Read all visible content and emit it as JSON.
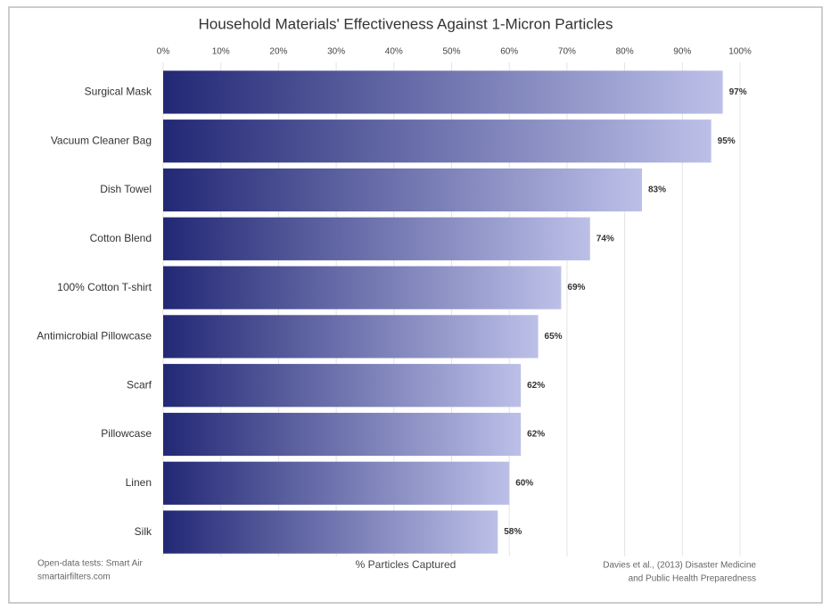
{
  "chart_data": {
    "type": "barh",
    "title": "Household Materials' Effectiveness Against 1-Micron Particles",
    "x_label": "% Particles Captured",
    "source_left": [
      "Open-data tests: Smart Air",
      "smartairfilters.com"
    ],
    "source_right": [
      "Davies et al., (2013) Disaster Medicine",
      "and Public Health Preparedness"
    ],
    "categories": [
      "Surgical Mask",
      "Vacuum Cleaner Bag",
      "Dish Towel",
      "Cotton Blend",
      "100% Cotton T-shirt",
      "Antimicrobial Pillowcase",
      "Scarf",
      "Pillowcase",
      "Linen",
      "Silk"
    ],
    "values": [
      97,
      95,
      83,
      74,
      69,
      65,
      62,
      62,
      60,
      58
    ],
    "value_labels": [
      "97%",
      "95%",
      "83%",
      "74%",
      "69%",
      "65%",
      "62%",
      "62%",
      "60%",
      "58%"
    ],
    "xlim": [
      0,
      100
    ],
    "xticks": [
      {
        "value": 0,
        "label": "0%"
      },
      {
        "value": 10,
        "label": "10%"
      },
      {
        "value": 20,
        "label": "20%"
      },
      {
        "value": 30,
        "label": "30%"
      },
      {
        "value": 40,
        "label": "40%"
      },
      {
        "value": 50,
        "label": "50%"
      },
      {
        "value": 60,
        "label": "60%"
      },
      {
        "value": 70,
        "label": "70%"
      },
      {
        "value": 80,
        "label": "80%"
      },
      {
        "value": 90,
        "label": "90%"
      },
      {
        "value": 100,
        "label": "100%"
      }
    ],
    "grid": true,
    "gradient": [
      "#232875",
      "#bcc0e8"
    ]
  }
}
